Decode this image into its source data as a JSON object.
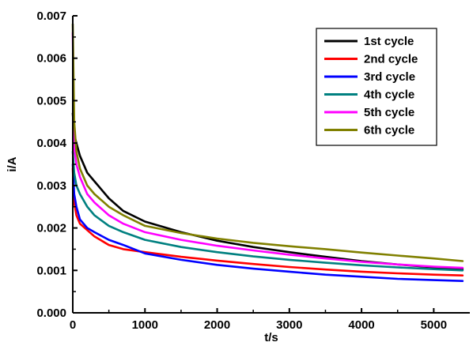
{
  "chart_data": {
    "type": "line",
    "title": "",
    "xlabel": "t/s",
    "ylabel": "i/A",
    "xlim": [
      0,
      5500
    ],
    "ylim": [
      0,
      0.007
    ],
    "x_ticks": [
      0,
      1000,
      2000,
      3000,
      4000,
      5000
    ],
    "x_tick_labels": [
      "0",
      "1000",
      "2000",
      "3000",
      "4000",
      "5000"
    ],
    "y_ticks": [
      0,
      0.001,
      0.002,
      0.003,
      0.004,
      0.005,
      0.006,
      0.007
    ],
    "y_tick_labels": [
      "0.000",
      "0.001",
      "0.002",
      "0.003",
      "0.004",
      "0.005",
      "0.006",
      "0.007"
    ],
    "grid": false,
    "legend_position": "top-right",
    "series": [
      {
        "name": "1st cycle",
        "color": "#000000",
        "x": [
          0,
          20,
          50,
          100,
          200,
          300,
          500,
          700,
          1000,
          1500,
          2000,
          2500,
          3000,
          3500,
          4000,
          4500,
          5000,
          5400
        ],
        "y": [
          0.0047,
          0.0042,
          0.004,
          0.0037,
          0.0033,
          0.0031,
          0.0027,
          0.0024,
          0.00215,
          0.0019,
          0.0017,
          0.00155,
          0.00143,
          0.00132,
          0.00122,
          0.00114,
          0.00107,
          0.00103
        ]
      },
      {
        "name": "2nd cycle",
        "color": "#ff0000",
        "x": [
          0,
          20,
          50,
          100,
          200,
          300,
          500,
          700,
          1000,
          1500,
          2000,
          2500,
          3000,
          3500,
          4000,
          4500,
          5000,
          5400
        ],
        "y": [
          0.0034,
          0.0026,
          0.0023,
          0.0021,
          0.00195,
          0.0018,
          0.0016,
          0.0015,
          0.00143,
          0.00132,
          0.00123,
          0.00115,
          0.00108,
          0.00102,
          0.00097,
          0.00093,
          0.0009,
          0.00088
        ]
      },
      {
        "name": "3rd cycle",
        "color": "#0000ff",
        "x": [
          0,
          20,
          50,
          100,
          200,
          300,
          500,
          700,
          1000,
          1500,
          2000,
          2500,
          3000,
          3500,
          4000,
          4500,
          5000,
          5400
        ],
        "y": [
          0.0035,
          0.0028,
          0.0025,
          0.0022,
          0.002,
          0.0019,
          0.00172,
          0.0016,
          0.0014,
          0.00125,
          0.00113,
          0.00104,
          0.00097,
          0.0009,
          0.00085,
          0.0008,
          0.00077,
          0.00075
        ]
      },
      {
        "name": "4th cycle",
        "color": "#008080",
        "x": [
          0,
          20,
          50,
          100,
          200,
          300,
          500,
          700,
          1000,
          1500,
          2000,
          2500,
          3000,
          3500,
          4000,
          4500,
          5000,
          5400
        ],
        "y": [
          0.0038,
          0.0033,
          0.003,
          0.0028,
          0.0025,
          0.0023,
          0.00205,
          0.0019,
          0.00172,
          0.00155,
          0.00143,
          0.00133,
          0.00125,
          0.00118,
          0.00112,
          0.00107,
          0.00103,
          0.001
        ]
      },
      {
        "name": "5th cycle",
        "color": "#ff00ff",
        "x": [
          0,
          20,
          50,
          100,
          200,
          300,
          500,
          700,
          1000,
          1500,
          2000,
          2500,
          3000,
          3500,
          4000,
          4500,
          5000,
          5400
        ],
        "y": [
          0.0066,
          0.0039,
          0.0035,
          0.0032,
          0.0028,
          0.0026,
          0.0023,
          0.0021,
          0.0019,
          0.00172,
          0.00158,
          0.00147,
          0.00137,
          0.00128,
          0.0012,
          0.00114,
          0.00109,
          0.00106
        ]
      },
      {
        "name": "6th cycle",
        "color": "#808000",
        "x": [
          0,
          20,
          50,
          100,
          200,
          300,
          500,
          700,
          1000,
          1500,
          2000,
          2500,
          3000,
          3500,
          4000,
          4500,
          5000,
          5400
        ],
        "y": [
          0.0068,
          0.0045,
          0.0038,
          0.0034,
          0.003,
          0.0028,
          0.0025,
          0.0023,
          0.00205,
          0.00188,
          0.00175,
          0.00165,
          0.00157,
          0.0015,
          0.00142,
          0.00135,
          0.00128,
          0.00122
        ]
      }
    ]
  }
}
